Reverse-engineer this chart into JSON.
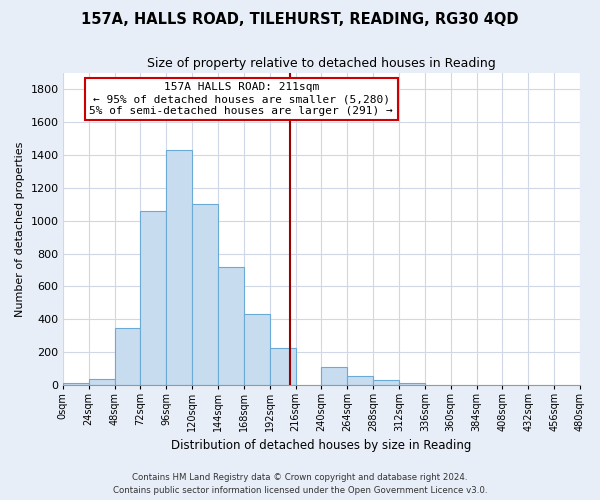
{
  "title": "157A, HALLS ROAD, TILEHURST, READING, RG30 4QD",
  "subtitle": "Size of property relative to detached houses in Reading",
  "xlabel": "Distribution of detached houses by size in Reading",
  "ylabel": "Number of detached properties",
  "bar_color": "#c8dcf0",
  "bar_edge_color": "#6aaad4",
  "bin_edges": [
    0,
    24,
    48,
    72,
    96,
    120,
    144,
    168,
    192,
    216,
    240,
    264,
    288,
    312,
    336,
    360,
    384,
    408,
    432,
    456,
    480
  ],
  "bar_heights": [
    15,
    35,
    350,
    1060,
    1430,
    1100,
    720,
    435,
    225,
    0,
    110,
    55,
    30,
    15,
    0,
    0,
    0,
    0,
    0,
    0
  ],
  "tick_labels": [
    "0sqm",
    "24sqm",
    "48sqm",
    "72sqm",
    "96sqm",
    "120sqm",
    "144sqm",
    "168sqm",
    "192sqm",
    "216sqm",
    "240sqm",
    "264sqm",
    "288sqm",
    "312sqm",
    "336sqm",
    "360sqm",
    "384sqm",
    "408sqm",
    "432sqm",
    "456sqm",
    "480sqm"
  ],
  "ylim": [
    0,
    1900
  ],
  "yticks": [
    0,
    200,
    400,
    600,
    800,
    1000,
    1200,
    1400,
    1600,
    1800
  ],
  "property_line_x": 211,
  "property_line_color": "#990000",
  "annotation_title": "157A HALLS ROAD: 211sqm",
  "annotation_line1": "← 95% of detached houses are smaller (5,280)",
  "annotation_line2": "5% of semi-detached houses are larger (291) →",
  "footer_line1": "Contains HM Land Registry data © Crown copyright and database right 2024.",
  "footer_line2": "Contains public sector information licensed under the Open Government Licence v3.0.",
  "bg_color": "#e8eef8",
  "plot_bg_color": "#ffffff",
  "grid_color": "#d0d8e8"
}
